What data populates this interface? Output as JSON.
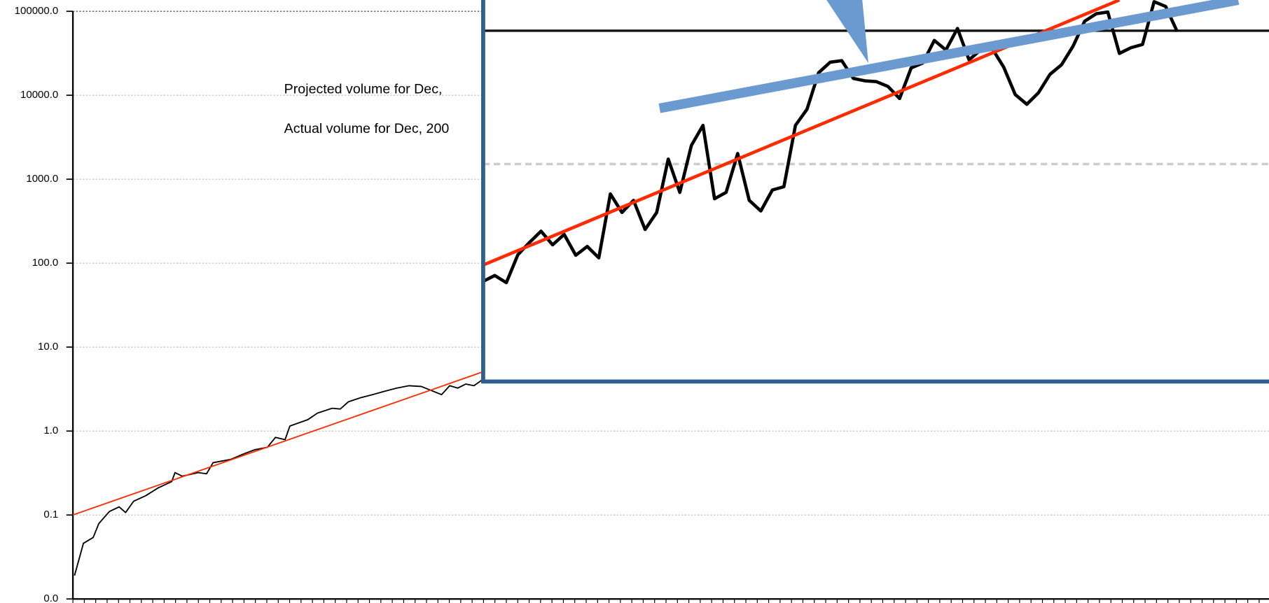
{
  "chart_data": [
    {
      "type": "line",
      "log_scale": true,
      "grid": true,
      "annotations": [
        "Projected volume for Dec,",
        "Actual volume for Dec, 200"
      ],
      "xlim": [
        0,
        105
      ],
      "xticks": [
        0,
        1,
        2,
        3,
        4,
        5,
        6,
        7,
        8,
        9,
        10,
        11,
        12,
        13,
        14,
        15,
        16,
        17,
        18,
        19,
        20,
        21,
        22,
        23,
        24,
        25,
        26,
        27,
        28,
        29,
        30,
        31,
        32,
        33,
        34,
        35,
        36,
        37,
        38,
        39,
        40,
        41,
        42,
        43,
        44,
        45,
        46,
        47,
        48,
        49,
        50,
        51,
        52,
        53,
        54,
        55,
        56,
        57,
        58,
        59,
        60,
        61,
        62,
        63,
        64,
        65,
        66,
        67,
        68,
        69,
        70,
        71,
        72,
        73,
        74,
        75,
        76,
        77,
        78,
        79,
        80,
        81,
        82,
        83,
        84,
        85,
        86,
        87,
        88,
        89,
        90,
        91,
        92,
        93,
        94,
        95,
        96,
        97,
        98,
        99,
        100,
        101,
        102,
        103,
        104,
        105
      ],
      "ylim": [
        0.01,
        100000
      ],
      "yticks": [
        {
          "value": 0.01,
          "label": "0.0"
        },
        0.1,
        {
          "value": 1,
          "label": "1.0"
        },
        {
          "value": 10,
          "label": "10.0"
        },
        {
          "value": 100,
          "label": "100.0"
        },
        {
          "value": 1000,
          "label": "1000.0"
        },
        {
          "value": 10000,
          "label": "10000.0"
        },
        {
          "value": 100000,
          "label": "100000.0"
        }
      ],
      "series": [
        {
          "color": "#000000",
          "x": [
            0.14,
            0.92,
            1.78,
            2.27,
            3.2,
            4.05,
            4.62,
            5.33,
            6.39,
            7.46,
            8.66,
            8.95,
            9.59,
            11.0,
            11.72,
            12.29,
            13.85,
            14.91,
            15.98,
            17.05,
            17.76,
            18.6,
            19.03,
            20.6,
            21.45,
            22.73,
            23.44,
            24.15,
            25.21,
            26.28,
            27.34,
            28.41,
            29.47,
            30.54,
            32.32,
            33.03,
            33.74,
            34.45,
            35.16,
            35.87
          ],
          "values": [
            0.019,
            0.046,
            0.054,
            0.079,
            0.11,
            0.125,
            0.107,
            0.146,
            0.17,
            0.21,
            0.25,
            0.32,
            0.29,
            0.32,
            0.31,
            0.42,
            0.46,
            0.53,
            0.6,
            0.64,
            0.84,
            0.79,
            1.15,
            1.37,
            1.64,
            1.87,
            1.83,
            2.23,
            2.49,
            2.72,
            2.98,
            3.25,
            3.47,
            3.4,
            2.72,
            3.47,
            3.25,
            3.63,
            3.47,
            4.06
          ]
        },
        {
          "color": "#ff2a00",
          "x": [
            0,
            36
          ],
          "values": [
            0.1,
            5.1
          ]
        }
      ]
    },
    {
      "type": "line",
      "log_scale": true,
      "xlim": [
        0,
        68
      ],
      "ylim": [
        234,
        170000
      ],
      "grid_lines": [
        10000,
        100000
      ],
      "series": [
        {
          "color": "#000000",
          "values": [
            1320,
            1460,
            1290,
            2090,
            2580,
            3140,
            2480,
            2970,
            2070,
            2410,
            1980,
            5970,
            4330,
            5340,
            3230,
            4330,
            10900,
            6130,
            13800,
            19500,
            5490,
            6130,
            12000,
            5340,
            4450,
            6400,
            6760,
            19500,
            25800,
            48400,
            58000,
            59700,
            43900,
            42100,
            41500,
            38200,
            31000,
            52600,
            57200,
            84600,
            71600,
            104000,
            60500,
            71600,
            73600,
            53400,
            33200,
            28100,
            34200,
            47100,
            55600,
            76700,
            118000,
            134000,
            138000,
            67600,
            74600,
            78900,
            165000,
            152000,
            98600
          ]
        },
        {
          "color": "#ff2a00",
          "x": [
            0,
            55
          ],
          "values": [
            1750,
            170000
          ]
        }
      ]
    }
  ]
}
